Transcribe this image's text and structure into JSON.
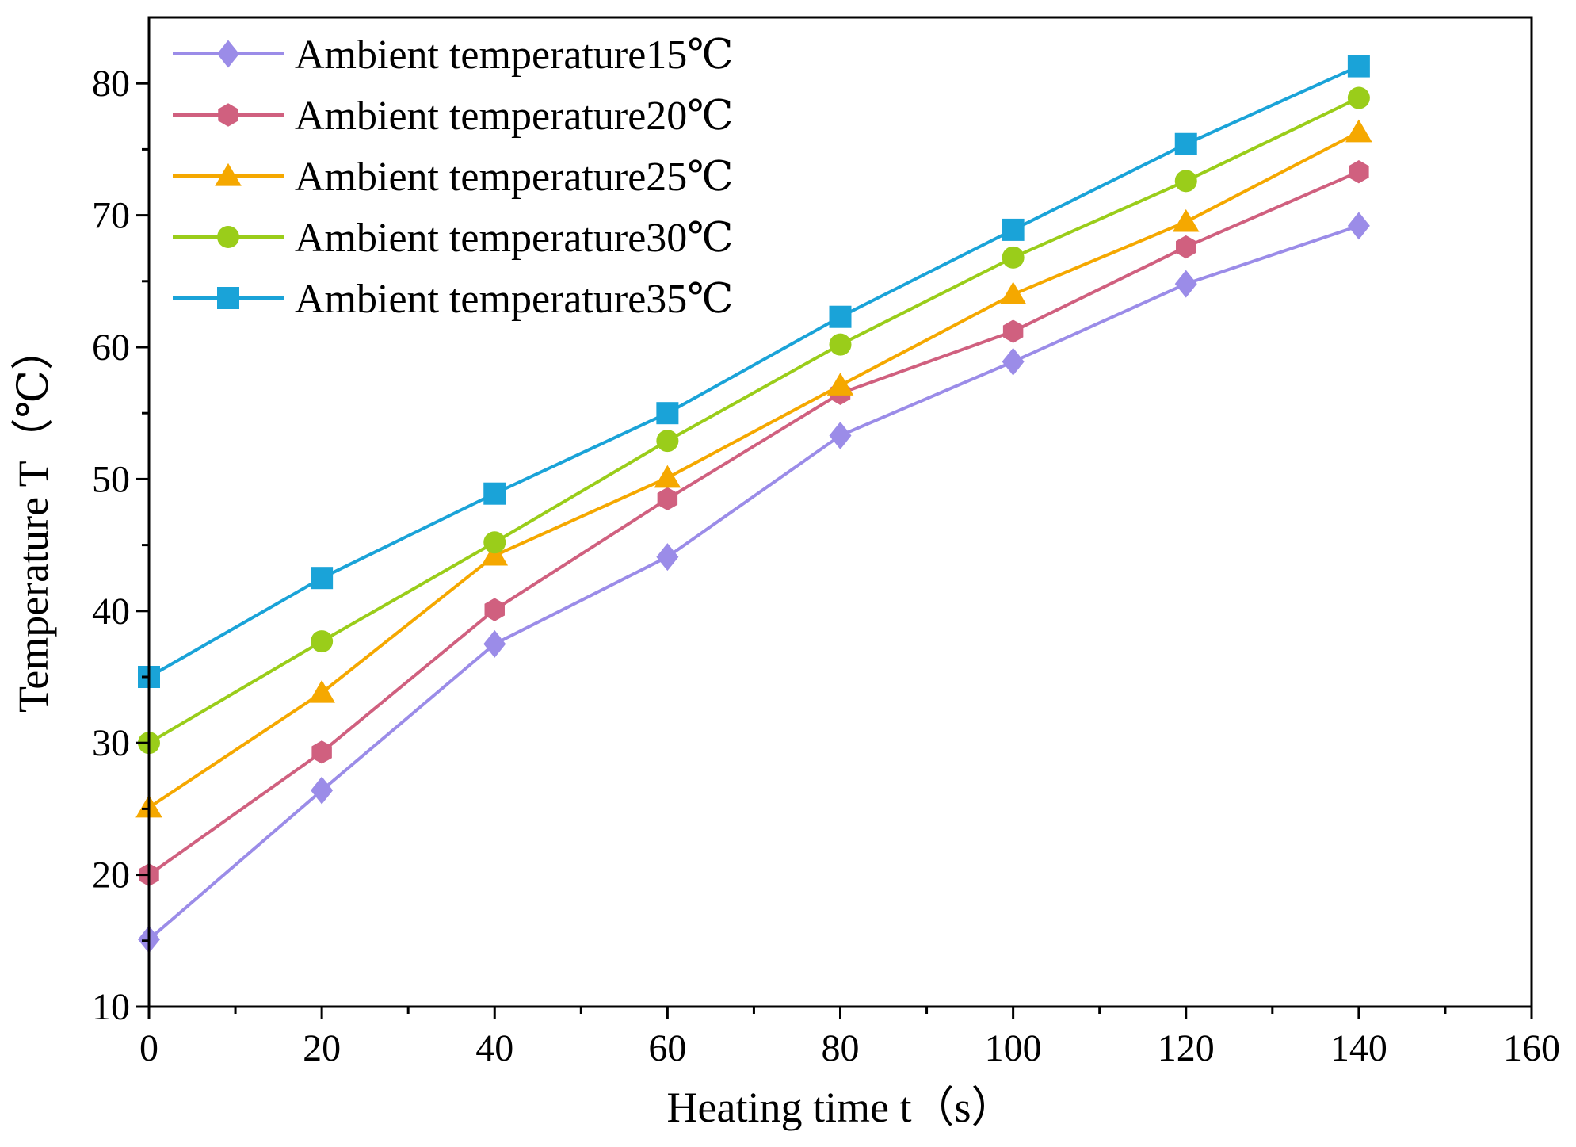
{
  "chart_data": {
    "type": "line",
    "title": "",
    "xlabel": "Heating time t（s）",
    "ylabel": "Temperature T（℃）",
    "xlim": [
      0,
      160
    ],
    "ylim": [
      10,
      85
    ],
    "x_ticks": [
      0,
      20,
      40,
      60,
      80,
      100,
      120,
      140,
      160
    ],
    "y_ticks": [
      10,
      20,
      30,
      40,
      50,
      60,
      70,
      80
    ],
    "x_tick_labels": [
      "0",
      "20",
      "40",
      "60",
      "80",
      "100",
      "120",
      "140",
      "160"
    ],
    "y_tick_labels": [
      "10",
      "20",
      "30",
      "40",
      "50",
      "60",
      "70",
      "80"
    ],
    "grid": false,
    "legend_position": "top-left",
    "x": [
      0,
      20,
      40,
      60,
      80,
      100,
      120,
      140
    ],
    "series": [
      {
        "name": "Ambient temperature15℃",
        "color": "#9B8CE8",
        "marker": "diamond",
        "values": [
          15.1,
          26.4,
          37.5,
          44.1,
          53.3,
          58.9,
          64.8,
          69.2
        ]
      },
      {
        "name": "Ambient temperature20℃",
        "color": "#D0607F",
        "marker": "hexagon",
        "values": [
          20.0,
          29.3,
          40.1,
          48.5,
          56.5,
          61.2,
          67.6,
          73.3
        ]
      },
      {
        "name": "Ambient temperature25℃",
        "color": "#F5A800",
        "marker": "triangle",
        "values": [
          25.1,
          33.8,
          44.2,
          50.1,
          57.1,
          64.0,
          69.5,
          76.3
        ]
      },
      {
        "name": "Ambient temperature30℃",
        "color": "#9ACD1A",
        "marker": "circle",
        "values": [
          30.0,
          37.7,
          45.2,
          52.9,
          60.2,
          66.8,
          72.6,
          78.9
        ]
      },
      {
        "name": "Ambient temperature35℃",
        "color": "#1AA3D8",
        "marker": "square",
        "values": [
          35.0,
          42.5,
          48.9,
          55.0,
          62.3,
          68.9,
          75.4,
          81.3
        ]
      }
    ]
  }
}
